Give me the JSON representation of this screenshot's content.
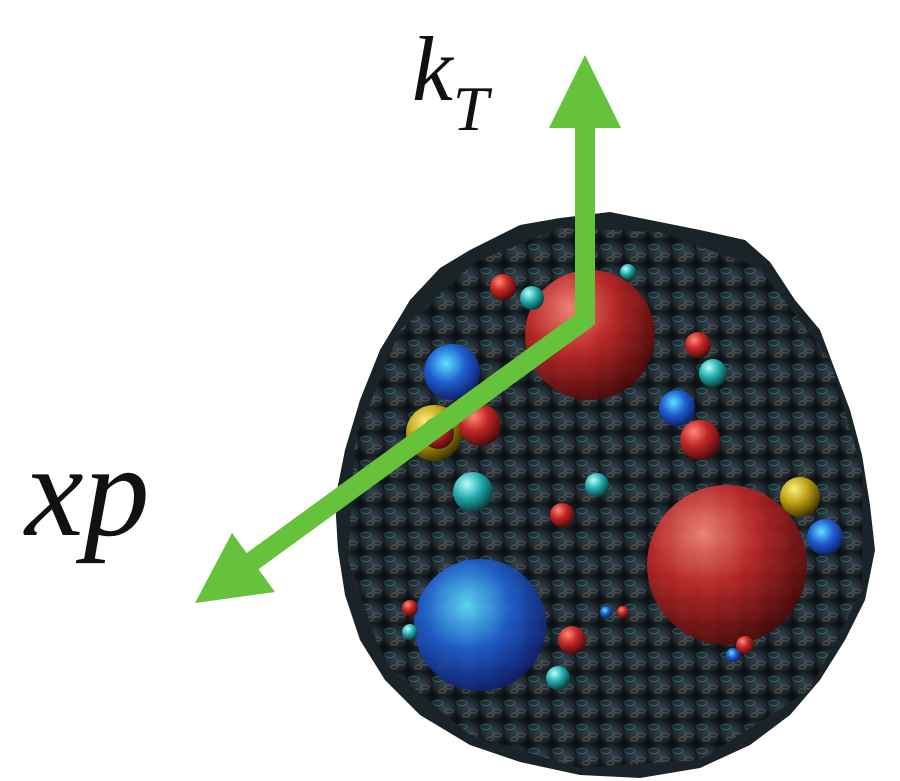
{
  "axes": [
    {
      "label": "k",
      "subscript": "T"
    },
    {
      "label": "xp"
    }
  ]
}
